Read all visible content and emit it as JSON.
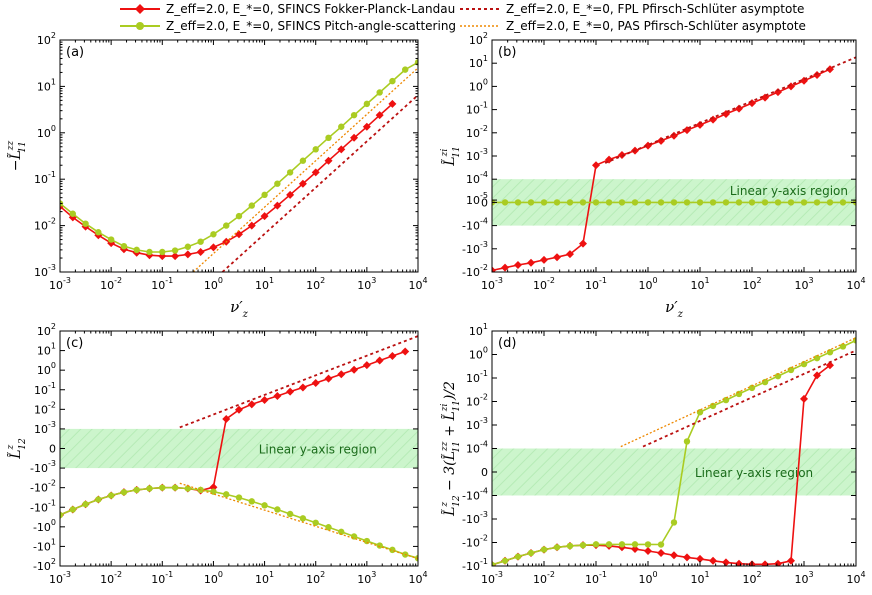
{
  "colors": {
    "fpl": "#ee1111",
    "pas": "#aacc22",
    "fpl_asym": "#bb1111",
    "pas_asym": "#ee8800",
    "linear_band": "#ccf5cc",
    "linear_text": "#1a6b1a"
  },
  "legend": {
    "items": [
      {
        "key": "fpl",
        "label": "Z_eff=2.0, E_*=0, SFINCS Fokker-Planck-Landau"
      },
      {
        "key": "pas",
        "label": "Z_eff=2.0, E_*=0, SFINCS Pitch-angle-scattering"
      },
      {
        "key": "fpl_asym",
        "label": "Z_eff=2.0, E_*=0, FPL Pfirsch-Schlüter asymptote"
      },
      {
        "key": "pas_asym",
        "label": "Z_eff=2.0, E_*=0, PAS Pfirsch-Schlüter asymptote"
      }
    ]
  },
  "chart_data": [
    {
      "id": "a",
      "panel_label": "(a)",
      "type": "line",
      "xlabel": "ν'_z",
      "ylabel": "−L̃^{zz}_{11}",
      "xscale": "log",
      "xlim": [
        0.001,
        10000
      ],
      "xticks": [
        "10^-3",
        "10^-2",
        "10^-1",
        "10^0",
        "10^1",
        "10^2",
        "10^3",
        "10^4"
      ],
      "yscale": "log",
      "ylim": [
        0.001,
        100
      ],
      "yticks": [
        "10^-3",
        "10^-2",
        "10^-1",
        "10^0",
        "10^1",
        "10^2"
      ],
      "series": [
        {
          "name": "SFINCS Fokker-Planck-Landau",
          "key": "fpl",
          "x": [
            0.001,
            0.00178,
            0.00316,
            0.00562,
            0.01,
            0.0178,
            0.0316,
            0.0562,
            0.1,
            0.178,
            0.316,
            0.562,
            1,
            1.78,
            3.16,
            5.62,
            10,
            17.8,
            31.6,
            56.2,
            100,
            178,
            316,
            562,
            1000,
            1780,
            3160
          ],
          "y": [
            0.026,
            0.015,
            0.0095,
            0.0062,
            0.0042,
            0.0031,
            0.0026,
            0.0023,
            0.0022,
            0.0022,
            0.0024,
            0.0027,
            0.0034,
            0.0045,
            0.0065,
            0.01,
            0.016,
            0.027,
            0.046,
            0.08,
            0.14,
            0.25,
            0.44,
            0.78,
            1.35,
            2.4,
            4.2
          ]
        },
        {
          "name": "SFINCS Pitch-angle-scattering",
          "key": "pas",
          "x": [
            0.001,
            0.00178,
            0.00316,
            0.00562,
            0.01,
            0.0178,
            0.0316,
            0.0562,
            0.1,
            0.178,
            0.316,
            0.562,
            1,
            1.78,
            3.16,
            5.62,
            10,
            17.8,
            31.6,
            56.2,
            100,
            178,
            316,
            562,
            1000,
            1780,
            3160,
            5620,
            10000
          ],
          "y": [
            0.03,
            0.018,
            0.011,
            0.0072,
            0.005,
            0.0036,
            0.003,
            0.0027,
            0.0027,
            0.0029,
            0.0035,
            0.0045,
            0.0065,
            0.01,
            0.016,
            0.027,
            0.046,
            0.08,
            0.14,
            0.25,
            0.44,
            0.78,
            1.35,
            2.4,
            4.2,
            7.4,
            13,
            23,
            33
          ]
        },
        {
          "name": "FPL Pfirsch-Schlüter asymptote",
          "key": "fpl_asym",
          "x": [
            1.5,
            10000
          ],
          "y": [
            0.001,
            6.5
          ]
        },
        {
          "name": "PAS Pfirsch-Schlüter asymptote",
          "key": "pas_asym",
          "x": [
            0.4,
            10000
          ],
          "y": [
            0.001,
            25
          ]
        }
      ]
    },
    {
      "id": "b",
      "panel_label": "(b)",
      "type": "line",
      "xlabel": "ν'_z",
      "ylabel": "L̃^{zi}_{11}",
      "xscale": "log",
      "xlim": [
        0.001,
        10000
      ],
      "xticks": [
        "10^-3",
        "10^-2",
        "10^-1",
        "10^0",
        "10^1",
        "10^2",
        "10^3",
        "10^4"
      ],
      "yscale": "symlog",
      "linthresh": 0.0001,
      "ylim": [
        -0.01,
        100
      ],
      "yticks": [
        "-10^-2",
        "-10^-3",
        "-10^-4",
        "0",
        "10^-5",
        "10^-4",
        "10^-3",
        "10^-2",
        "10^-1",
        "10^0",
        "10^1",
        "10^2"
      ],
      "linear_region_text": "Linear y-axis region",
      "series": [
        {
          "name": "SFINCS Fokker-Planck-Landau",
          "key": "fpl",
          "x": [
            0.001,
            0.00178,
            0.00316,
            0.00562,
            0.01,
            0.0178,
            0.0316,
            0.0562,
            0.1,
            0.178,
            0.316,
            0.562,
            1,
            1.78,
            3.16,
            5.62,
            10,
            17.8,
            31.6,
            56.2,
            100,
            178,
            316,
            562,
            1000,
            1780,
            3160
          ],
          "y": [
            -0.0085,
            -0.0065,
            -0.005,
            -0.004,
            -0.003,
            -0.0023,
            -0.0017,
            -0.0006,
            0.0004,
            0.0007,
            0.0011,
            0.0017,
            0.0028,
            0.0045,
            0.0075,
            0.013,
            0.022,
            0.037,
            0.065,
            0.11,
            0.19,
            0.33,
            0.57,
            1.0,
            1.75,
            3.1,
            5.5
          ]
        },
        {
          "name": "SFINCS Pitch-angle-scattering",
          "key": "pas",
          "x": [
            0.001,
            0.00178,
            0.00316,
            0.00562,
            0.01,
            0.0178,
            0.0316,
            0.0562,
            0.1,
            0.178,
            0.316,
            0.562,
            1,
            1.78,
            3.16,
            5.62,
            10,
            17.8,
            31.6,
            56.2,
            100,
            178,
            316,
            562,
            1000,
            1780,
            3160,
            5620,
            10000
          ],
          "y": [
            0,
            0,
            0,
            0,
            0,
            0,
            0,
            0,
            0,
            0,
            0,
            0,
            0,
            0,
            0,
            0,
            0,
            0,
            0,
            0,
            0,
            0,
            0,
            0,
            0,
            0,
            0,
            0,
            0
          ]
        },
        {
          "name": "FPL Pfirsch-Schlüter asymptote",
          "key": "fpl_asym",
          "x": [
            0.15,
            10000
          ],
          "y": [
            0.0005,
            18
          ]
        }
      ]
    },
    {
      "id": "c",
      "panel_label": "(c)",
      "type": "line",
      "xlabel": "ν'_z",
      "ylabel": "L̃^{z}_{12}",
      "xscale": "log",
      "xlim": [
        0.001,
        10000
      ],
      "xticks": [
        "10^-3",
        "10^-2",
        "10^-1",
        "10^0",
        "10^1",
        "10^2",
        "10^3",
        "10^4"
      ],
      "yscale": "symlog",
      "linthresh": 0.001,
      "ylim": [
        -100,
        100
      ],
      "yticks": [
        "-10^2",
        "-10^1",
        "-10^0",
        "-10^-1",
        "-10^-2",
        "-10^-3",
        "0",
        "10^-3",
        "10^-2",
        "10^-1",
        "10^0",
        "10^1",
        "10^2"
      ],
      "linear_region_text": "Linear y-axis region",
      "series": [
        {
          "name": "SFINCS Fokker-Planck-Landau",
          "key": "fpl",
          "x": [
            0.001,
            0.00178,
            0.00316,
            0.00562,
            0.01,
            0.0178,
            0.0316,
            0.0562,
            0.1,
            0.178,
            0.316,
            0.562,
            1,
            1.78,
            3.16,
            5.62,
            10,
            17.8,
            31.6,
            56.2,
            100,
            178,
            316,
            562,
            1000,
            1780,
            3160,
            5620
          ],
          "y": [
            -0.25,
            -0.13,
            -0.07,
            -0.04,
            -0.025,
            -0.017,
            -0.013,
            -0.011,
            -0.01,
            -0.01,
            -0.011,
            -0.014,
            -0.0095,
            0.0032,
            0.0095,
            0.018,
            0.03,
            0.048,
            0.08,
            0.13,
            0.22,
            0.37,
            0.62,
            1.05,
            1.8,
            3.1,
            5.3,
            9.0
          ]
        },
        {
          "name": "SFINCS Pitch-angle-scattering",
          "key": "pas",
          "x": [
            0.001,
            0.00178,
            0.00316,
            0.00562,
            0.01,
            0.0178,
            0.0316,
            0.0562,
            0.1,
            0.178,
            0.316,
            0.562,
            1,
            1.78,
            3.16,
            5.62,
            10,
            17.8,
            31.6,
            56.2,
            100,
            178,
            316,
            562,
            1000,
            1780,
            3160,
            5620,
            10000
          ],
          "y": [
            -0.25,
            -0.13,
            -0.07,
            -0.04,
            -0.025,
            -0.017,
            -0.013,
            -0.011,
            -0.01,
            -0.01,
            -0.011,
            -0.013,
            -0.016,
            -0.022,
            -0.032,
            -0.05,
            -0.08,
            -0.13,
            -0.22,
            -0.37,
            -0.62,
            -1.05,
            -1.8,
            -3.1,
            -5.3,
            -9.0,
            -15,
            -26,
            -40
          ]
        },
        {
          "name": "FPL Pfirsch-Schlüter asymptote",
          "key": "fpl_asym",
          "x": [
            0.22,
            10000
          ],
          "y": [
            0.0012,
            55
          ]
        },
        {
          "name": "PAS Pfirsch-Schlüter asymptote",
          "key": "pas_asym",
          "x": [
            0.22,
            10000
          ],
          "y": [
            -0.006,
            -42
          ]
        }
      ]
    },
    {
      "id": "d",
      "panel_label": "(d)",
      "type": "line",
      "xlabel": "ν'_z",
      "ylabel": "L̃^{z}_{12} − 3(L̃^{zz}_{11} + L̃^{zi}_{11})/2",
      "xscale": "log",
      "xlim": [
        0.001,
        10000
      ],
      "xticks": [
        "10^-3",
        "10^-2",
        "10^-1",
        "10^0",
        "10^1",
        "10^2",
        "10^3",
        "10^4"
      ],
      "yscale": "symlog",
      "linthresh": 0.0001,
      "ylim": [
        -0.1,
        10
      ],
      "yticks": [
        "-10^-1",
        "-10^-2",
        "-10^-3",
        "-10^-4",
        "0",
        "10^-4",
        "10^-3",
        "10^-2",
        "10^-1",
        "10^0",
        "10^1"
      ],
      "linear_region_text": "Linear y-axis region",
      "series": [
        {
          "name": "SFINCS Fokker-Planck-Landau",
          "key": "fpl",
          "x": [
            0.001,
            0.00178,
            0.00316,
            0.00562,
            0.01,
            0.0178,
            0.0316,
            0.0562,
            0.1,
            0.178,
            0.316,
            0.562,
            1,
            1.78,
            3.16,
            5.62,
            10,
            17.8,
            31.6,
            56.2,
            100,
            178,
            316,
            562,
            1000,
            1780,
            3160
          ],
          "y": [
            -0.09,
            -0.06,
            -0.04,
            -0.028,
            -0.02,
            -0.016,
            -0.014,
            -0.013,
            -0.013,
            -0.014,
            -0.016,
            -0.019,
            -0.023,
            -0.028,
            -0.035,
            -0.043,
            -0.05,
            -0.06,
            -0.07,
            -0.08,
            -0.085,
            -0.085,
            -0.08,
            -0.06,
            0.013,
            0.13,
            0.35
          ]
        },
        {
          "name": "SFINCS Pitch-angle-scattering",
          "key": "pas",
          "x": [
            0.001,
            0.00178,
            0.00316,
            0.00562,
            0.01,
            0.0178,
            0.0316,
            0.0562,
            0.1,
            0.178,
            0.316,
            0.562,
            1,
            1.78,
            3.16,
            5.62,
            10,
            17.8,
            31.6,
            56.2,
            100,
            178,
            316,
            562,
            1000,
            1780,
            3160,
            5620,
            10000
          ],
          "y": [
            -0.09,
            -0.06,
            -0.04,
            -0.028,
            -0.02,
            -0.016,
            -0.014,
            -0.013,
            -0.012,
            -0.012,
            -0.012,
            -0.012,
            -0.0121,
            -0.0122,
            -0.0014,
            0.0002,
            0.0035,
            0.0065,
            0.0115,
            0.021,
            0.038,
            0.067,
            0.12,
            0.22,
            0.39,
            0.7,
            1.25,
            2.2,
            4.0
          ]
        },
        {
          "name": "FPL Pfirsch-Schlüter asymptote",
          "key": "fpl_asym",
          "x": [
            0.8,
            10000
          ],
          "y": [
            0.00012,
            1.5
          ]
        },
        {
          "name": "PAS Pfirsch-Schlüter asymptote",
          "key": "pas_asym",
          "x": [
            0.3,
            10000
          ],
          "y": [
            0.00012,
            5.2
          ]
        }
      ]
    }
  ]
}
